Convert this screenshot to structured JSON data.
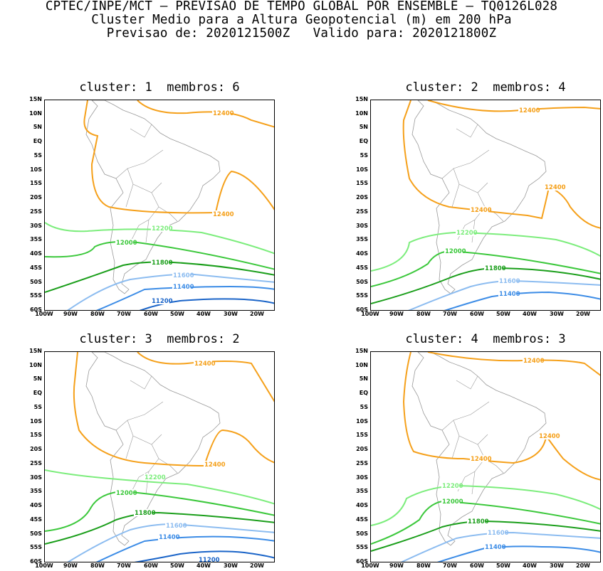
{
  "header": {
    "line1": "CPTEC/INPE/MCT — PREVISAO DE TEMPO GLOBAL POR ENSEMBLE — TQ0126L028",
    "line2": "Cluster Medio para a Altura Geopotencial (m) em 200 hPa",
    "line3": "Previsao de: 2020121500Z   Valido para: 2020121800Z"
  },
  "axes": {
    "lat_labels": [
      "15N",
      "10N",
      "5N",
      "EQ",
      "5S",
      "10S",
      "15S",
      "20S",
      "25S",
      "30S",
      "35S",
      "40S",
      "45S",
      "50S",
      "55S",
      "60S"
    ],
    "lon_labels": [
      "100W",
      "90W",
      "80W",
      "70W",
      "60W",
      "50W",
      "40W",
      "30W",
      "20W"
    ]
  },
  "colors": {
    "c12400": "#f5a01a",
    "c12200": "#7ced7c",
    "c12000": "#3cc83c",
    "c11800": "#1a9e1a",
    "c11600": "#8cbcf0",
    "c11400": "#3c8ce6",
    "c11200": "#1a64c8",
    "coast": "#999999"
  },
  "panels": [
    {
      "title": "cluster: 1  membros: 6",
      "labels": {
        "l12400a": "12400",
        "l12400b": "12400",
        "l12200": "12200",
        "l12000": "12000",
        "l11800": "11800",
        "l11600": "11600",
        "l11400": "11400",
        "l11200": "11200"
      }
    },
    {
      "title": "cluster: 2  membros: 4",
      "labels": {
        "l12400a": "12400",
        "l12400b": "12400",
        "l12400c": "12400",
        "l12200": "12200",
        "l12000": "12000",
        "l11800": "11800",
        "l11600": "11600",
        "l11400": "11400"
      }
    },
    {
      "title": "cluster: 3  membros: 2",
      "labels": {
        "l12400a": "12400",
        "l12400b": "12400",
        "l12200": "12200",
        "l12000": "12000",
        "l11800": "11800",
        "l11600": "11600",
        "l11400": "11400",
        "l11200": "11200"
      }
    },
    {
      "title": "cluster: 4  membros: 3",
      "labels": {
        "l12400a": "12400",
        "l12400b": "12400",
        "l12400c": "12400",
        "l12200": "12200",
        "l12000": "12000",
        "l11800": "11800",
        "l11600": "11600",
        "l11400": "11400"
      }
    }
  ]
}
